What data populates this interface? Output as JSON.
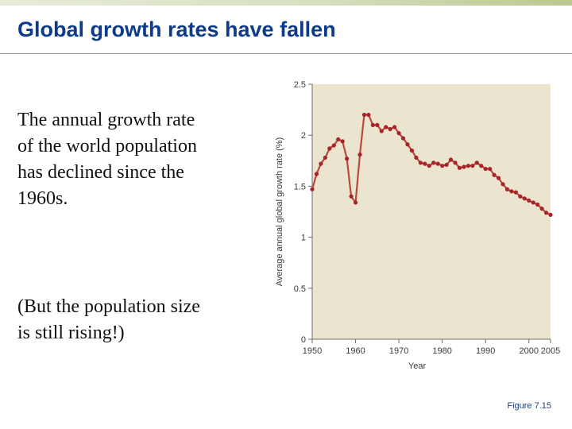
{
  "slide": {
    "title": "Global growth rates have fallen",
    "paragraph1": "The annual growth rate of the world population has declined since the 1960s.",
    "paragraph2": "(But the population size is still rising!)",
    "figure_label": "Figure 7.15"
  },
  "colors": {
    "title": "#0b3b8a",
    "plot_background": "#ebe5cf",
    "series_line": "#b84a3c",
    "series_marker": "#a8232a"
  },
  "chart_data": {
    "type": "line",
    "title": "",
    "xlabel": "Year",
    "ylabel": "Average annual global growth rate (%)",
    "xlim": [
      1950,
      2005
    ],
    "ylim": [
      0,
      2.5
    ],
    "xticks": [
      "1950",
      "1960",
      "1970",
      "1980",
      "1990",
      "2000",
      "2005"
    ],
    "yticks": [
      "0",
      "0.5",
      "1",
      "1.5",
      "2",
      "2.5"
    ],
    "grid": false,
    "legend": "none",
    "series": [
      {
        "x": [
          1950,
          1951,
          1952,
          1953,
          1954,
          1955,
          1956,
          1957,
          1958,
          1959,
          1960,
          1961,
          1962,
          1963,
          1964,
          1965,
          1966,
          1967,
          1968,
          1969,
          1970,
          1971,
          1972,
          1973,
          1974,
          1975,
          1976,
          1977,
          1978,
          1979,
          1980,
          1981,
          1982,
          1983,
          1984,
          1985,
          1986,
          1987,
          1988,
          1989,
          1990,
          1991,
          1992,
          1993,
          1994,
          1995,
          1996,
          1997,
          1998,
          1999,
          2000,
          2001,
          2002,
          2003,
          2004,
          2005
        ],
        "y": [
          1.47,
          1.62,
          1.72,
          1.78,
          1.87,
          1.9,
          1.96,
          1.94,
          1.77,
          1.4,
          1.34,
          1.81,
          2.2,
          2.2,
          2.1,
          2.1,
          2.04,
          2.08,
          2.06,
          2.08,
          2.02,
          1.97,
          1.91,
          1.85,
          1.78,
          1.73,
          1.72,
          1.7,
          1.73,
          1.72,
          1.7,
          1.71,
          1.76,
          1.73,
          1.68,
          1.69,
          1.7,
          1.7,
          1.73,
          1.7,
          1.67,
          1.67,
          1.61,
          1.58,
          1.52,
          1.47,
          1.45,
          1.44,
          1.4,
          1.38,
          1.36,
          1.34,
          1.32,
          1.28,
          1.24,
          1.22
        ]
      }
    ]
  }
}
